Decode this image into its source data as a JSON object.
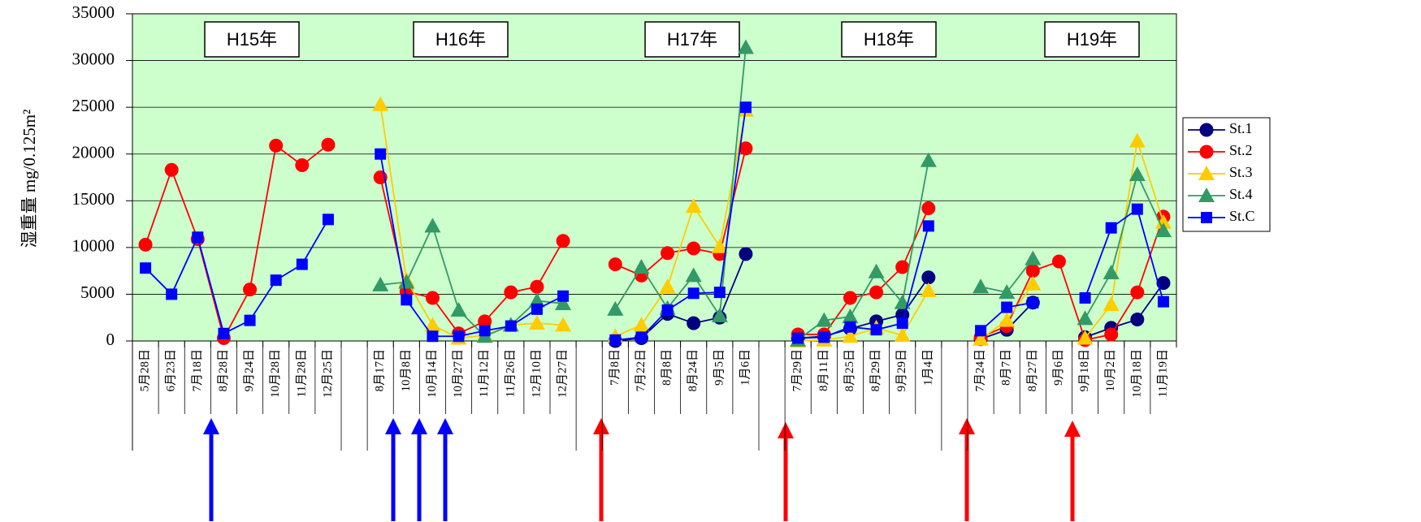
{
  "chart_data": {
    "type": "line",
    "ylabel": "湿重量 mg/0.125m²",
    "annotations": [
      "H15年",
      "H16年",
      "H17年",
      "H18年",
      "H19年"
    ],
    "categories": [
      "5月28日",
      "6月23日",
      "7月18日",
      "8月28日",
      "9月24日",
      "10月28日",
      "11月28日",
      "12月25日",
      null,
      "8月17日",
      "10月8日",
      "10月14日",
      "10月27日",
      "11月12日",
      "11月26日",
      "12月10日",
      "12月27日",
      null,
      "7月8日",
      "7月22日",
      "8月8日",
      "8月24日",
      "9月5日",
      "1月6日",
      null,
      "7月29日",
      "8月11日",
      "8月25日",
      "8月29日",
      "9月29日",
      "1月4日",
      null,
      "7月24日",
      "8月7日",
      "8月27日",
      "9月6日",
      "9月18日",
      "10月2日",
      "10月18日",
      "11月19日"
    ],
    "series": [
      {
        "name": "St.1",
        "color": "#000080",
        "marker": "circle",
        "values": [
          null,
          null,
          null,
          null,
          null,
          null,
          null,
          null,
          null,
          null,
          null,
          null,
          null,
          null,
          null,
          null,
          null,
          null,
          0,
          300,
          2900,
          1900,
          2500,
          9300,
          null,
          300,
          500,
          1300,
          2100,
          2800,
          6800,
          null,
          200,
          1200,
          4100,
          null,
          400,
          1400,
          2300,
          6200
        ]
      },
      {
        "name": "St.2",
        "color": "#ff0000",
        "marker": "circle",
        "values": [
          10300,
          18300,
          10900,
          300,
          5500,
          20900,
          18800,
          21000,
          null,
          17500,
          5300,
          4600,
          800,
          2100,
          5200,
          5800,
          10700,
          null,
          8200,
          7000,
          9400,
          9900,
          9300,
          20600,
          null,
          700,
          700,
          4600,
          5200,
          7900,
          14200,
          null,
          400,
          1600,
          7500,
          8500,
          100,
          700,
          5200,
          13300
        ]
      },
      {
        "name": "St.3",
        "color": "#ffcc00",
        "marker": "triangle",
        "values": [
          null,
          null,
          null,
          null,
          null,
          null,
          null,
          null,
          null,
          25300,
          6500,
          1700,
          300,
          600,
          1700,
          1900,
          1700,
          null,
          500,
          1700,
          5800,
          14400,
          10100,
          24700,
          null,
          0,
          100,
          500,
          1400,
          600,
          5400,
          null,
          200,
          2200,
          6100,
          null,
          300,
          3900,
          21400,
          12700
        ]
      },
      {
        "name": "St.4",
        "color": "#339966",
        "marker": "triangle",
        "values": [
          null,
          null,
          null,
          null,
          null,
          null,
          null,
          null,
          null,
          6000,
          6300,
          12300,
          3300,
          500,
          1700,
          4300,
          4000,
          null,
          3400,
          7900,
          3500,
          7000,
          2700,
          31400,
          null,
          100,
          2200,
          2600,
          7400,
          4100,
          19300,
          null,
          5800,
          5200,
          8800,
          null,
          2400,
          7300,
          17800,
          11800
        ]
      },
      {
        "name": "St.C",
        "color": "#0000ff",
        "marker": "square",
        "values": [
          7800,
          5000,
          11100,
          800,
          2200,
          6500,
          8200,
          13000,
          null,
          20000,
          4400,
          500,
          500,
          1100,
          1600,
          3400,
          4800,
          null,
          100,
          400,
          3300,
          5100,
          5200,
          25000,
          null,
          300,
          400,
          1500,
          1200,
          1900,
          12300,
          null,
          1100,
          3600,
          4100,
          null,
          4600,
          12100,
          14100,
          4200
        ]
      }
    ],
    "ylim": [
      0,
      35000
    ],
    "yticks": [
      0,
      5000,
      10000,
      15000,
      20000,
      25000,
      30000,
      35000
    ],
    "grid": true,
    "background": "#ccffcc",
    "legend": "right"
  }
}
